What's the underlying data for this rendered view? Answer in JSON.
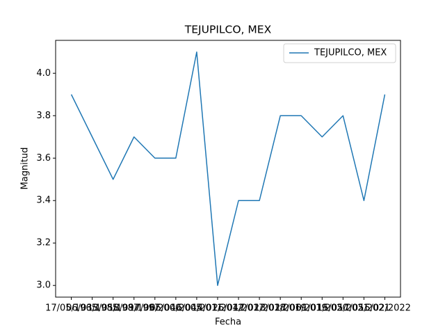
{
  "chart_data": {
    "type": "line",
    "title": "TEJUPILCO, MEX",
    "x_label": "Fecha",
    "y_label": "Magnitud",
    "categories": [
      "17/05/1965",
      "06/03/1985",
      "13/05/1987",
      "18/09/1997",
      "17/06/2000",
      "05/04/2005",
      "16/04/2011",
      "14/01/2012",
      "26/04/2017",
      "17/02/2018",
      "13/02/2019",
      "17/06/2019",
      "01/01/2020",
      "15/05/2021",
      "17/05/2021",
      "15/02/2022"
    ],
    "series": [
      {
        "name": "TEJUPILCO, MEX",
        "color": "#1f77b4",
        "values": [
          3.9,
          3.7,
          3.5,
          3.7,
          3.6,
          3.6,
          4.1,
          3.0,
          3.4,
          3.4,
          3.8,
          3.8,
          3.7,
          3.8,
          3.4,
          3.9
        ]
      }
    ],
    "ylim": [
      2.945,
      4.155
    ],
    "yticks": [
      {
        "value": 3,
        "label": "3.0"
      },
      3.2,
      3.4,
      3.6,
      3.8,
      {
        "value": 4,
        "label": "4.0"
      }
    ],
    "legend": "upper right",
    "grid": false
  }
}
